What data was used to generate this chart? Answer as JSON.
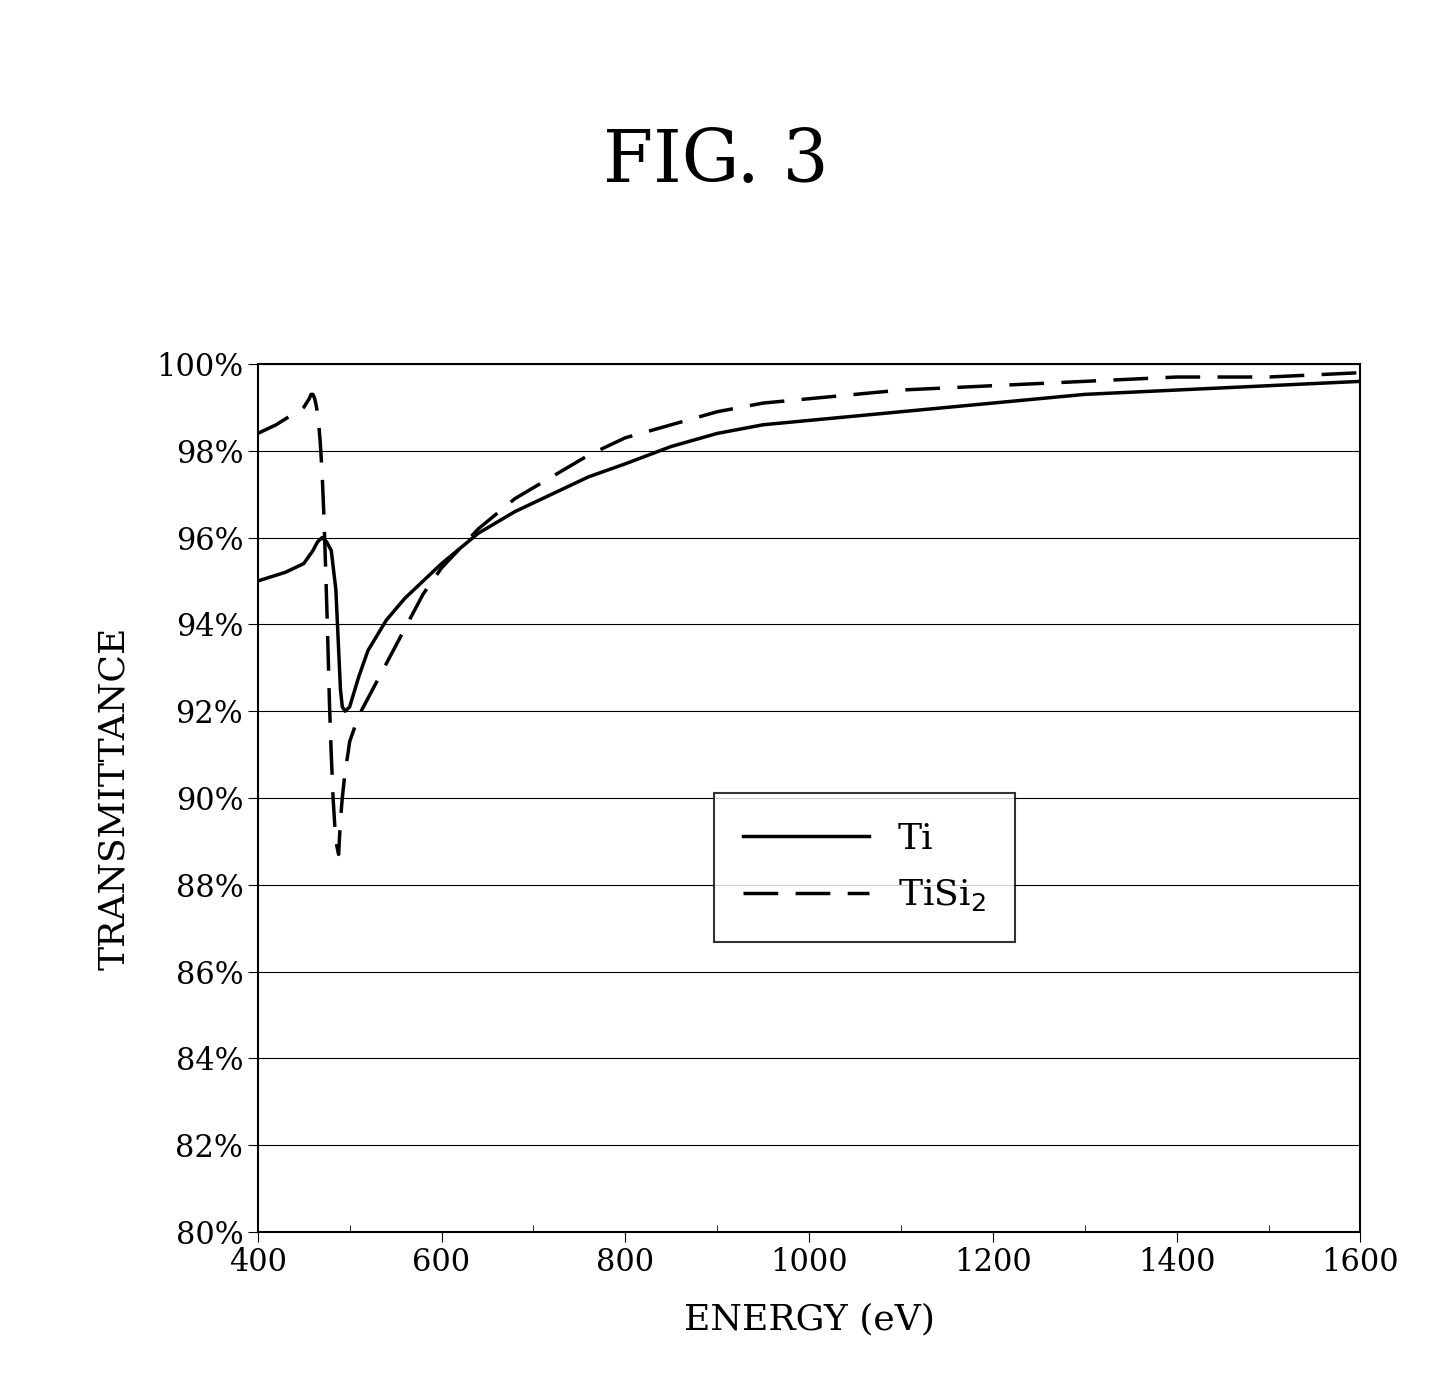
{
  "title": "FIG. 3",
  "xlabel": "ENERGY (eV)",
  "ylabel": "TRANSMITTANCE",
  "xlim": [
    400,
    1600
  ],
  "ylim": [
    0.8,
    1.0
  ],
  "yticks": [
    0.8,
    0.82,
    0.84,
    0.86,
    0.88,
    0.9,
    0.92,
    0.94,
    0.96,
    0.98,
    1.0
  ],
  "xticks": [
    400,
    600,
    800,
    1000,
    1200,
    1400,
    1600
  ],
  "ti_x": [
    400,
    430,
    450,
    460,
    465,
    470,
    475,
    480,
    485,
    490,
    492,
    495,
    500,
    510,
    520,
    540,
    560,
    580,
    600,
    640,
    680,
    720,
    760,
    800,
    850,
    900,
    950,
    1000,
    1050,
    1100,
    1200,
    1300,
    1400,
    1500,
    1600
  ],
  "ti_y": [
    0.95,
    0.952,
    0.954,
    0.957,
    0.959,
    0.96,
    0.959,
    0.957,
    0.948,
    0.925,
    0.921,
    0.92,
    0.921,
    0.928,
    0.934,
    0.941,
    0.946,
    0.95,
    0.954,
    0.961,
    0.966,
    0.97,
    0.974,
    0.977,
    0.981,
    0.984,
    0.986,
    0.987,
    0.988,
    0.989,
    0.991,
    0.993,
    0.994,
    0.995,
    0.996
  ],
  "tisi2_x": [
    400,
    420,
    435,
    445,
    450,
    453,
    456,
    458,
    460,
    462,
    464,
    466,
    468,
    470,
    472,
    474,
    476,
    478,
    480,
    482,
    484,
    486,
    488,
    490,
    492,
    495,
    498,
    500,
    505,
    510,
    515,
    520,
    530,
    545,
    560,
    580,
    600,
    640,
    680,
    720,
    760,
    800,
    850,
    900,
    950,
    1000,
    1100,
    1200,
    1300,
    1400,
    1500,
    1600
  ],
  "tisi2_y": [
    0.984,
    0.986,
    0.988,
    0.989,
    0.99,
    0.991,
    0.992,
    0.993,
    0.993,
    0.992,
    0.99,
    0.987,
    0.982,
    0.975,
    0.965,
    0.952,
    0.938,
    0.922,
    0.91,
    0.9,
    0.893,
    0.889,
    0.887,
    0.895,
    0.9,
    0.906,
    0.91,
    0.913,
    0.916,
    0.919,
    0.921,
    0.923,
    0.927,
    0.933,
    0.939,
    0.947,
    0.953,
    0.962,
    0.969,
    0.974,
    0.979,
    0.983,
    0.986,
    0.989,
    0.991,
    0.992,
    0.994,
    0.995,
    0.996,
    0.997,
    0.997,
    0.998
  ],
  "legend_ti": "Ti",
  "legend_tisi2": "TiSi$_2$",
  "background_color": "#ffffff",
  "line_color": "#000000",
  "title_fontsize": 52,
  "label_fontsize": 26,
  "tick_fontsize": 22,
  "legend_fontsize": 26
}
